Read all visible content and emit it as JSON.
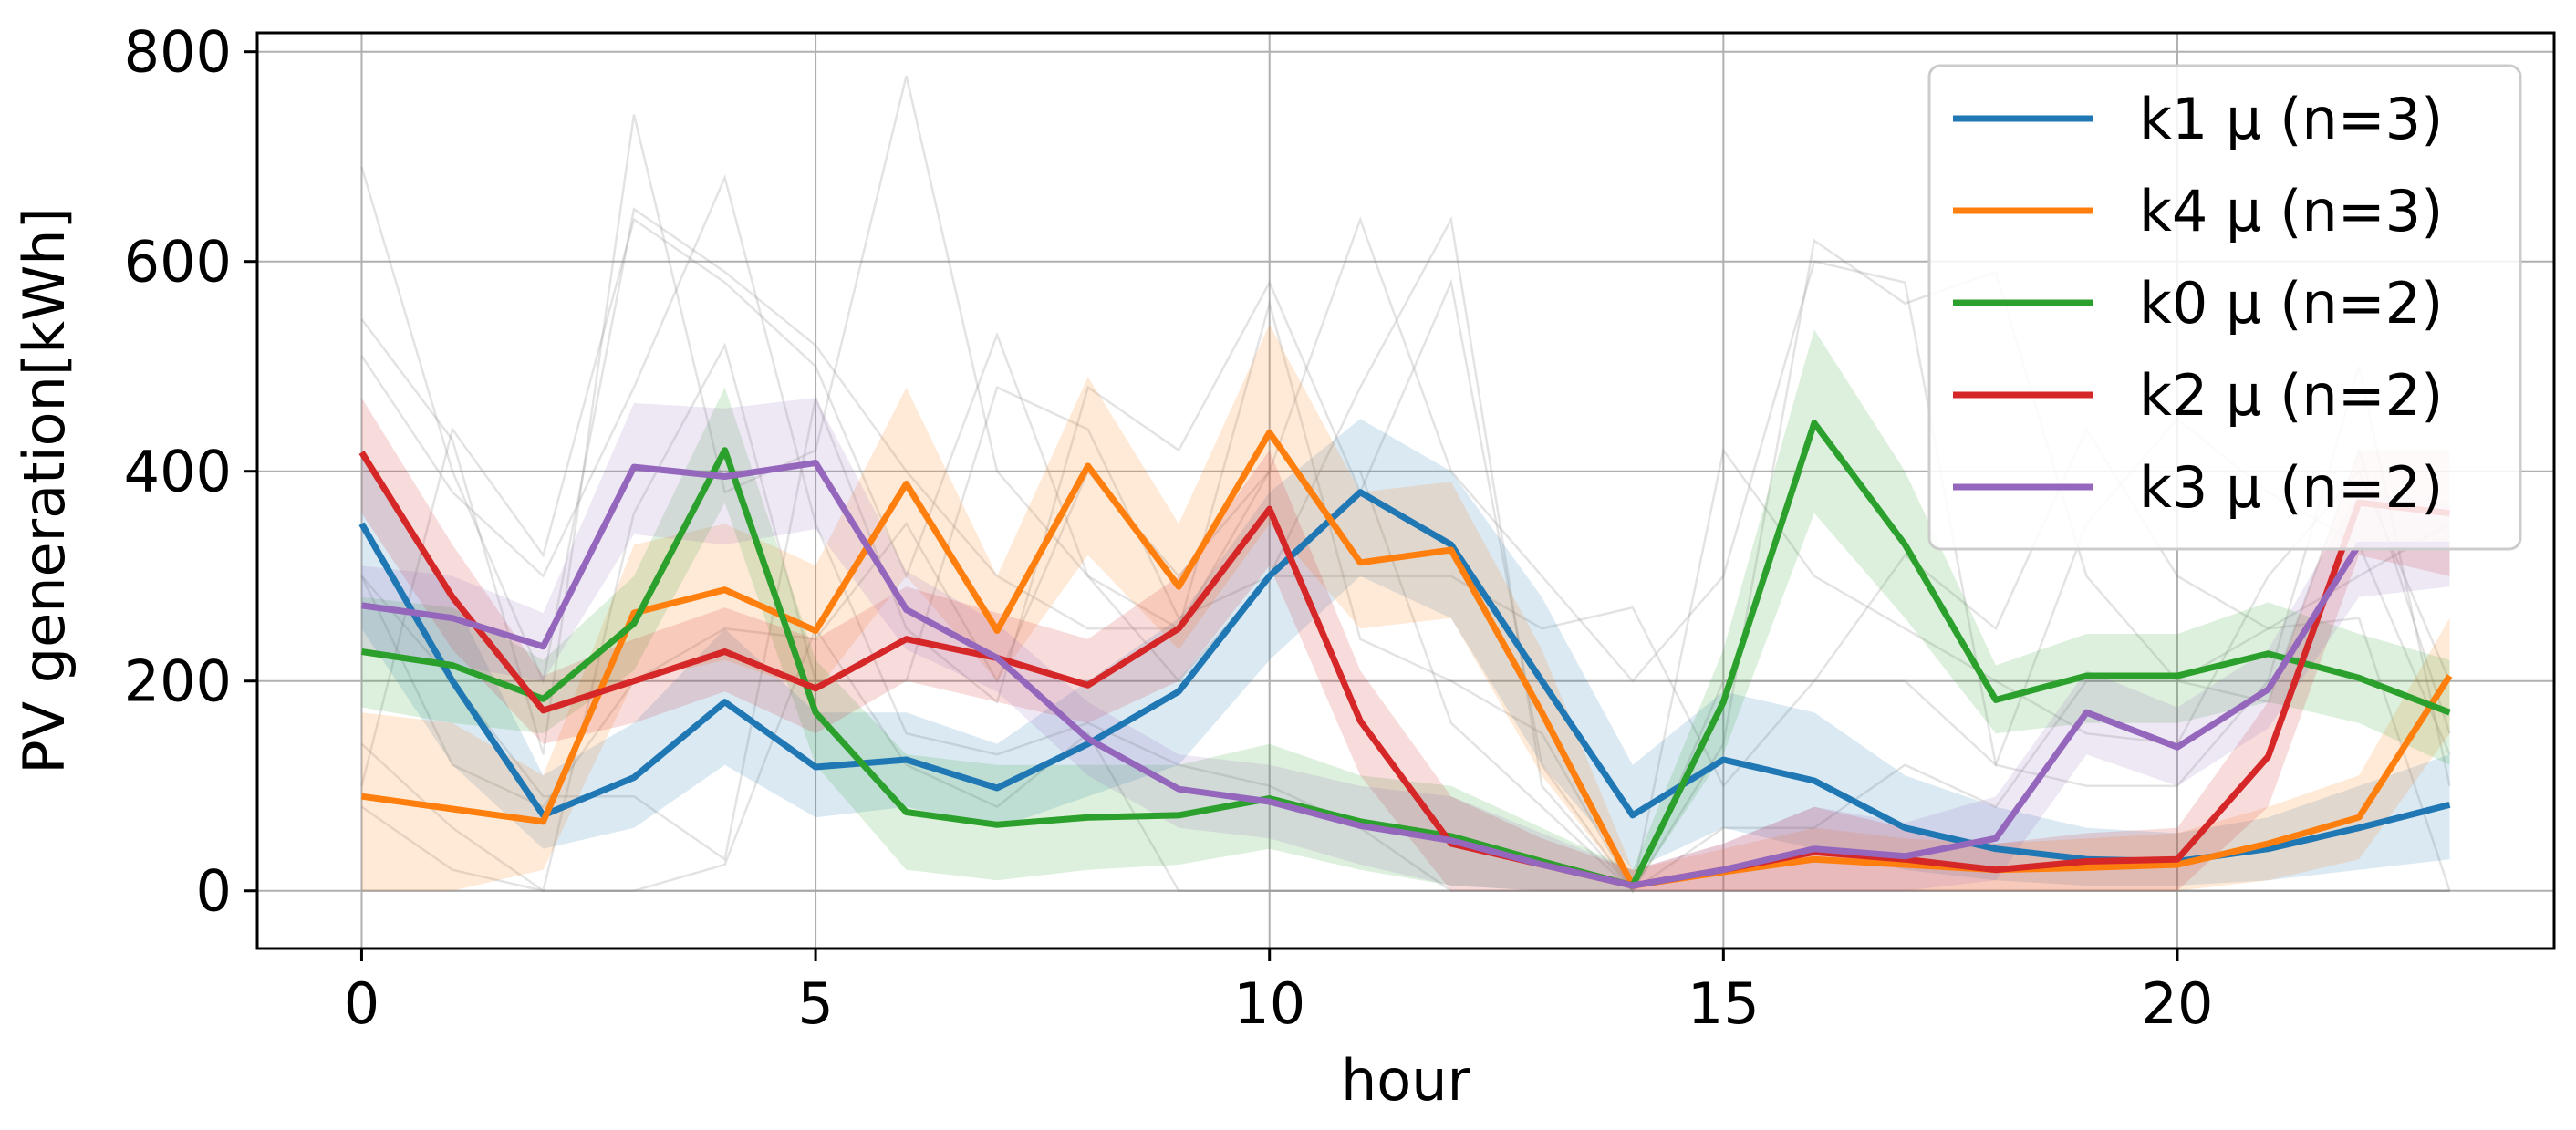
{
  "chart_data": {
    "type": "line",
    "title": "",
    "xlabel": "hour",
    "ylabel": "PV generation[kWh]",
    "xlim": [
      -1.15,
      24.15
    ],
    "ylim": [
      -55,
      818
    ],
    "xticks": [
      0,
      5,
      10,
      15,
      20
    ],
    "yticks": [
      0,
      200,
      400,
      600,
      800
    ],
    "grid": true,
    "legend_position": "top-right",
    "x": [
      0,
      1,
      2,
      3,
      4,
      5,
      6,
      7,
      8,
      9,
      10,
      11,
      12,
      13,
      14,
      15,
      16,
      17,
      18,
      19,
      20,
      21,
      22,
      23
    ],
    "series": [
      {
        "name": "k1 μ (n=3)",
        "color": "#1f77b4",
        "values": [
          350,
          200,
          72,
          108,
          180,
          118,
          125,
          98,
          140,
          190,
          300,
          380,
          330,
          200,
          72,
          125,
          105,
          60,
          40,
          30,
          28,
          40,
          60,
          82
        ],
        "band_low": [
          250,
          120,
          40,
          60,
          120,
          70,
          80,
          60,
          90,
          120,
          220,
          300,
          260,
          120,
          20,
          60,
          40,
          20,
          10,
          5,
          5,
          10,
          20,
          30
        ],
        "band_high": [
          420,
          280,
          110,
          160,
          250,
          170,
          170,
          140,
          200,
          260,
          380,
          450,
          400,
          280,
          120,
          190,
          170,
          110,
          80,
          60,
          55,
          70,
          100,
          130
        ]
      },
      {
        "name": "k4 μ (n=3)",
        "color": "#ff7f0e",
        "values": [
          90,
          78,
          66,
          265,
          287,
          248,
          388,
          248,
          405,
          290,
          437,
          313,
          325,
          170,
          5,
          18,
          30,
          25,
          20,
          22,
          25,
          45,
          70,
          205
        ],
        "band_low": [
          0,
          0,
          20,
          200,
          220,
          190,
          300,
          200,
          320,
          230,
          350,
          250,
          260,
          110,
          0,
          0,
          0,
          0,
          0,
          0,
          0,
          10,
          30,
          150
        ],
        "band_high": [
          170,
          160,
          110,
          330,
          350,
          310,
          480,
          300,
          490,
          350,
          540,
          380,
          390,
          230,
          20,
          40,
          60,
          50,
          45,
          50,
          55,
          80,
          110,
          260
        ]
      },
      {
        "name": "k0 μ (n=2)",
        "color": "#2ca02c",
        "values": [
          228,
          215,
          183,
          255,
          420,
          170,
          75,
          63,
          70,
          72,
          88,
          66,
          52,
          28,
          5,
          180,
          446,
          330,
          182,
          205,
          205,
          226,
          203,
          170
        ],
        "band_low": [
          175,
          160,
          150,
          210,
          370,
          120,
          20,
          10,
          20,
          25,
          40,
          20,
          5,
          0,
          0,
          130,
          360,
          260,
          150,
          160,
          160,
          180,
          160,
          120
        ],
        "band_high": [
          280,
          270,
          220,
          300,
          480,
          220,
          130,
          120,
          120,
          120,
          140,
          110,
          100,
          60,
          20,
          230,
          535,
          400,
          215,
          245,
          245,
          275,
          245,
          220
        ]
      },
      {
        "name": "k2 μ (n=2)",
        "color": "#d62728",
        "values": [
          418,
          280,
          172,
          200,
          228,
          193,
          240,
          222,
          196,
          250,
          364,
          162,
          45,
          25,
          5,
          20,
          37,
          30,
          20,
          28,
          30,
          128,
          370,
          360
        ],
        "band_low": [
          360,
          230,
          140,
          160,
          190,
          150,
          200,
          180,
          160,
          200,
          310,
          110,
          0,
          0,
          0,
          0,
          0,
          0,
          0,
          0,
          0,
          80,
          320,
          300
        ],
        "band_high": [
          470,
          330,
          205,
          240,
          270,
          240,
          290,
          265,
          240,
          300,
          420,
          210,
          90,
          50,
          20,
          45,
          80,
          60,
          45,
          55,
          60,
          180,
          420,
          420
        ]
      },
      {
        "name": "k3 μ (n=2)",
        "color": "#9467bd",
        "values": [
          272,
          260,
          233,
          404,
          395,
          408,
          268,
          222,
          145,
          97,
          85,
          62,
          48,
          25,
          5,
          20,
          40,
          33,
          50,
          170,
          137,
          192,
          330,
          330
        ],
        "band_low": [
          230,
          215,
          200,
          340,
          330,
          345,
          230,
          190,
          110,
          60,
          50,
          25,
          5,
          0,
          0,
          0,
          0,
          0,
          10,
          130,
          100,
          155,
          280,
          290
        ],
        "band_high": [
          310,
          300,
          265,
          465,
          460,
          470,
          305,
          255,
          180,
          130,
          120,
          100,
          90,
          55,
          20,
          45,
          80,
          65,
          90,
          210,
          175,
          230,
          380,
          370
        ]
      }
    ],
    "background_traces": [
      [
        690,
        400,
        200,
        650,
        590,
        520,
        400,
        300,
        250,
        250,
        400,
        640,
        400,
        300,
        200,
        300,
        600,
        580,
        120,
        100,
        100,
        200,
        500,
        100
      ],
      [
        545,
        430,
        130,
        740,
        380,
        420,
        777,
        400,
        300,
        200,
        300,
        480,
        640,
        100,
        0,
        420,
        300,
        250,
        200,
        150,
        140,
        300,
        400,
        200
      ],
      [
        510,
        380,
        300,
        480,
        680,
        350,
        150,
        130,
        160,
        120,
        100,
        60,
        0,
        0,
        0,
        0,
        0,
        0,
        0,
        0,
        0,
        0,
        0,
        0
      ],
      [
        0,
        0,
        0,
        0,
        0,
        0,
        0,
        0,
        0,
        0,
        0,
        0,
        0,
        0,
        0,
        0,
        0,
        0,
        0,
        0,
        0,
        0,
        0,
        0
      ],
      [
        300,
        200,
        90,
        90,
        30,
        470,
        250,
        180,
        480,
        420,
        580,
        380,
        580,
        120,
        0,
        140,
        620,
        560,
        590,
        300,
        200,
        250,
        300,
        350
      ],
      [
        80,
        20,
        0,
        0,
        25,
        250,
        120,
        80,
        150,
        0,
        0,
        0,
        0,
        0,
        0,
        0,
        0,
        0,
        0,
        0,
        0,
        0,
        0,
        0
      ],
      [
        140,
        60,
        0,
        360,
        520,
        200,
        200,
        480,
        440,
        260,
        300,
        300,
        300,
        250,
        270,
        100,
        200,
        200,
        120,
        350,
        450,
        380,
        330,
        130
      ],
      [
        100,
        440,
        320,
        640,
        580,
        500,
        300,
        530,
        300,
        250,
        560,
        240,
        200,
        150,
        0,
        200,
        200,
        320,
        250,
        440,
        300,
        250,
        260,
        0
      ],
      [
        300,
        120,
        80,
        200,
        250,
        240,
        350,
        200,
        400,
        300,
        400,
        400,
        160,
        80,
        0,
        60,
        60,
        120,
        80,
        200,
        200,
        180,
        420,
        150
      ]
    ]
  }
}
